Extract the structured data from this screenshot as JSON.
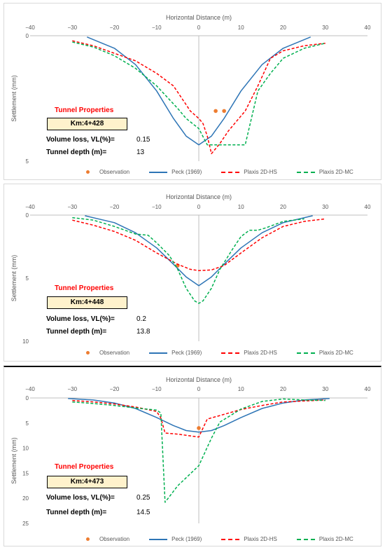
{
  "legend": {
    "observation": "Observation",
    "peck": "Peck (1969)",
    "hs": "Plaxis 2D-HS",
    "mc": "Plaxis 2D-MC"
  },
  "colors": {
    "observation": "#ed7d31",
    "peck": "#2e75b6",
    "hs": "#ff0000",
    "mc": "#00b050",
    "title_red": "#ff0000",
    "km_fill": "#fff2cc"
  },
  "panels": [
    {
      "props": {
        "title": "Tunnel Properties",
        "km": "Km:4+428",
        "vl_label": "Volume loss, VL(%)=",
        "vl_value": "0.15",
        "depth_label": "Tunnel depth (m)=",
        "depth_value": "13"
      }
    },
    {
      "props": {
        "title": "Tunnel Properties",
        "km": "Km:4+448",
        "vl_label": "Volume loss, VL(%)=",
        "vl_value": "0.2",
        "depth_label": "Tunnel depth (m)=",
        "depth_value": "13.8"
      }
    },
    {
      "props": {
        "title": "Tunnel Properties",
        "km": "Km:4+473",
        "vl_label": "Volume loss, VL(%)=",
        "vl_value": "0.25",
        "depth_label": "Tunnel depth (m)=",
        "depth_value": "14.5"
      }
    }
  ],
  "chart_data": [
    {
      "type": "line",
      "xlabel": "Horizontal Distance (m)",
      "ylabel": "Settlement (mm)",
      "xlim": [
        -40,
        40
      ],
      "ylim": [
        0,
        5
      ],
      "y_inverted": true,
      "x_ticks": [
        -40,
        -30,
        -20,
        -10,
        0,
        10,
        20,
        30,
        40
      ],
      "y_ticks": [
        0,
        5
      ],
      "x_axis_position": "top",
      "legend_position": "bottom",
      "grid": false,
      "series": [
        {
          "name": "Observation",
          "kind": "scatter",
          "x": [
            4,
            6
          ],
          "y": [
            3.0,
            3.0
          ]
        },
        {
          "name": "Peck (1969)",
          "kind": "line",
          "x": [
            -26.5,
            -20,
            -15,
            -10,
            -6,
            -3,
            0,
            3,
            6,
            10,
            15,
            20,
            26.5
          ],
          "y": [
            0.05,
            0.5,
            1.15,
            2.2,
            3.3,
            4.0,
            4.35,
            4.0,
            3.3,
            2.2,
            1.15,
            0.5,
            0.05
          ]
        },
        {
          "name": "Plaxis 2D-HS",
          "kind": "line",
          "x": [
            -30,
            -25,
            -20,
            -15,
            -10,
            -6,
            -4,
            -2,
            0,
            1,
            2,
            3,
            5,
            7,
            9,
            11,
            14,
            17,
            20,
            25,
            30
          ],
          "y": [
            0.2,
            0.4,
            0.7,
            1.0,
            1.5,
            2.0,
            2.5,
            3.0,
            3.3,
            3.5,
            4.0,
            4.7,
            4.3,
            3.8,
            3.4,
            3.0,
            2.0,
            0.9,
            0.6,
            0.4,
            0.3
          ]
        },
        {
          "name": "Plaxis 2D-MC",
          "kind": "line",
          "x": [
            -30,
            -25,
            -20,
            -15,
            -10,
            -5,
            -3,
            0,
            2,
            4,
            6,
            8,
            11,
            14,
            17,
            20,
            25,
            30
          ],
          "y": [
            0.25,
            0.45,
            0.8,
            1.3,
            2.0,
            2.9,
            3.3,
            3.7,
            4.35,
            4.35,
            4.35,
            4.35,
            4.35,
            2.2,
            1.5,
            0.9,
            0.5,
            0.3
          ]
        }
      ]
    },
    {
      "type": "line",
      "xlabel": "Horizontal Distance (m)",
      "ylabel": "Settlement (mm)",
      "xlim": [
        -40,
        40
      ],
      "ylim": [
        0,
        10
      ],
      "y_inverted": true,
      "x_ticks": [
        -40,
        -30,
        -20,
        -10,
        0,
        10,
        20,
        30,
        40
      ],
      "y_ticks": [
        0,
        5,
        10
      ],
      "x_axis_position": "top",
      "legend_position": "bottom",
      "grid": false,
      "series": [
        {
          "name": "Observation",
          "kind": "scatter",
          "x": [
            -5
          ],
          "y": [
            4.0
          ]
        },
        {
          "name": "Peck (1969)",
          "kind": "line",
          "x": [
            -27,
            -20,
            -15,
            -10,
            -6,
            -3,
            0,
            3,
            6,
            10,
            15,
            20,
            27
          ],
          "y": [
            0.05,
            0.6,
            1.4,
            2.6,
            3.9,
            4.9,
            5.6,
            4.9,
            3.9,
            2.6,
            1.4,
            0.6,
            0.05
          ]
        },
        {
          "name": "Plaxis 2D-HS",
          "kind": "line",
          "x": [
            -30,
            -25,
            -20,
            -15,
            -10,
            -5,
            -2,
            0,
            3,
            6,
            10,
            15,
            20,
            25,
            30
          ],
          "y": [
            0.4,
            0.8,
            1.3,
            2.0,
            3.0,
            3.9,
            4.3,
            4.4,
            4.35,
            4.0,
            3.0,
            1.8,
            0.9,
            0.5,
            0.3
          ]
        },
        {
          "name": "Plaxis 2D-MC",
          "kind": "line",
          "x": [
            -30,
            -25,
            -20,
            -15,
            -12,
            -10,
            -7,
            -5,
            -3,
            -1,
            0,
            1,
            3,
            5,
            8,
            10,
            12,
            14,
            16,
            20,
            25
          ],
          "y": [
            0.2,
            0.4,
            0.9,
            1.5,
            1.6,
            2.2,
            3.2,
            4.3,
            5.8,
            6.8,
            7.0,
            6.8,
            5.8,
            4.3,
            2.7,
            1.7,
            1.2,
            1.2,
            1.0,
            0.5,
            0.3
          ]
        }
      ]
    },
    {
      "type": "line",
      "xlabel": "Horizontal Distance (m)",
      "ylabel": "Settlement (mm)",
      "xlim": [
        -40,
        40
      ],
      "ylim": [
        0,
        25
      ],
      "y_inverted": true,
      "x_ticks": [
        -40,
        -30,
        -20,
        -10,
        0,
        10,
        20,
        30,
        40
      ],
      "y_ticks": [
        0,
        5,
        10,
        15,
        20,
        25
      ],
      "x_axis_position": "top",
      "legend_position": "bottom",
      "grid": false,
      "series": [
        {
          "name": "Observation",
          "kind": "scatter",
          "x": [
            0
          ],
          "y": [
            6.0
          ]
        },
        {
          "name": "Peck (1969)",
          "kind": "line",
          "x": [
            -31,
            -25,
            -20,
            -15,
            -10,
            -6,
            -3,
            0,
            3,
            6,
            10,
            15,
            20,
            25,
            31
          ],
          "y": [
            0.1,
            0.4,
            1.0,
            2.1,
            3.9,
            5.5,
            6.5,
            6.8,
            6.5,
            5.5,
            3.9,
            2.1,
            1.0,
            0.4,
            0.1
          ]
        },
        {
          "name": "Plaxis 2D-HS",
          "kind": "line",
          "x": [
            -30,
            -25,
            -20,
            -15,
            -10,
            -9,
            -8,
            -5,
            0,
            1,
            2,
            5,
            10,
            15,
            20,
            25,
            30
          ],
          "y": [
            0.5,
            0.8,
            1.2,
            1.8,
            2.7,
            4.0,
            7.0,
            7.2,
            7.8,
            6.0,
            4.2,
            3.5,
            2.3,
            1.5,
            0.8,
            0.6,
            0.4
          ]
        },
        {
          "name": "Plaxis 2D-MC",
          "kind": "line",
          "x": [
            -30,
            -25,
            -20,
            -15,
            -10,
            -9,
            -8,
            -5,
            0,
            3,
            5,
            10,
            15,
            20,
            25,
            30
          ],
          "y": [
            0.8,
            1.1,
            1.5,
            2.0,
            2.4,
            3.0,
            20.8,
            17.5,
            13.5,
            8.0,
            4.8,
            2.2,
            0.7,
            0.2,
            0.4,
            0.5
          ]
        }
      ]
    }
  ]
}
